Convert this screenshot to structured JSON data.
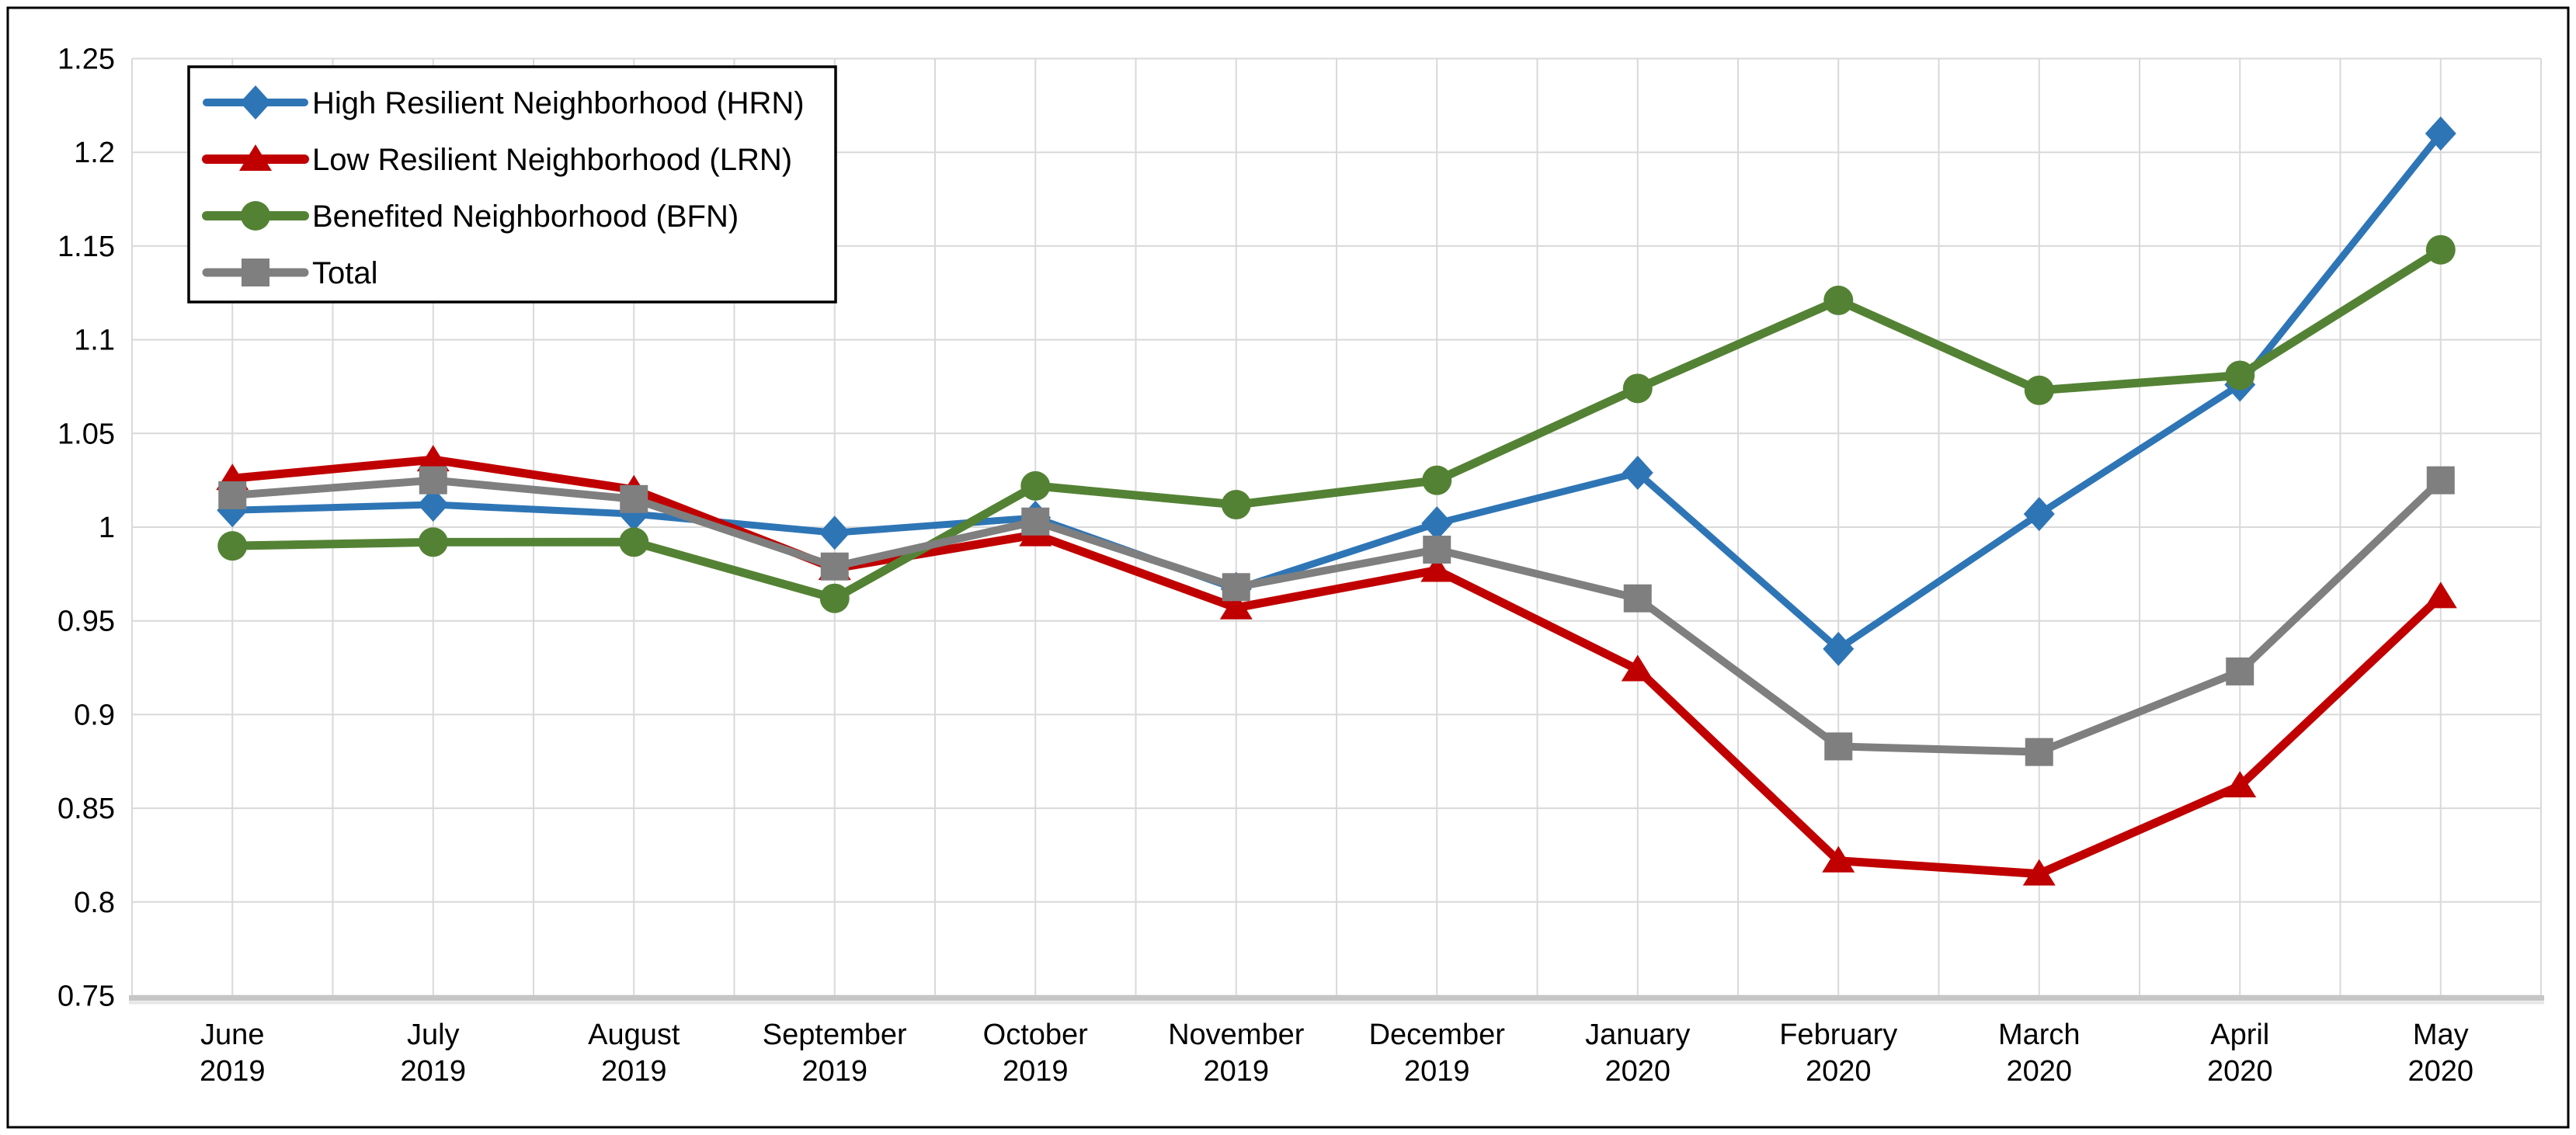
{
  "chart_data": {
    "type": "line",
    "title": "",
    "categories": [
      "June 2019",
      "July 2019",
      "August 2019",
      "September 2019",
      "October 2019",
      "November 2019",
      "December 2019",
      "January 2020",
      "February 2020",
      "March 2020",
      "April 2020",
      "May 2020"
    ],
    "categories_line1": [
      "June",
      "July",
      "August",
      "September",
      "October",
      "November",
      "December",
      "January",
      "February",
      "March",
      "April",
      "May"
    ],
    "categories_line2": [
      "2019",
      "2019",
      "2019",
      "2019",
      "2019",
      "2019",
      "2019",
      "2020",
      "2020",
      "2020",
      "2020",
      "2020"
    ],
    "series": [
      {
        "key": "hrn",
        "name": "High Resilient Neighborhood (HRN)",
        "color": "#2E75B6",
        "marker": "diamond",
        "line_width": 9,
        "values": [
          1.009,
          1.012,
          1.007,
          0.997,
          1.005,
          0.967,
          1.002,
          1.029,
          0.935,
          1.007,
          1.076,
          1.21
        ]
      },
      {
        "key": "lrn",
        "name": "Low Resilient Neighborhood (LRN)",
        "color": "#C00000",
        "marker": "triangle",
        "line_width": 11,
        "values": [
          1.026,
          1.036,
          1.02,
          0.978,
          0.996,
          0.957,
          0.977,
          0.924,
          0.822,
          0.815,
          0.862,
          0.963
        ]
      },
      {
        "key": "bfn",
        "name": "Benefited Neighborhood (BFN)",
        "color": "#548235",
        "marker": "circle",
        "line_width": 11,
        "values": [
          0.99,
          0.992,
          0.992,
          0.962,
          1.022,
          1.012,
          1.025,
          1.074,
          1.121,
          1.073,
          1.081,
          1.148
        ]
      },
      {
        "key": "total",
        "name": "Total",
        "color": "#7F7F7F",
        "marker": "square",
        "line_width": 10,
        "values": [
          1.017,
          1.025,
          1.015,
          0.979,
          1.003,
          0.968,
          0.988,
          0.962,
          0.883,
          0.88,
          0.923,
          1.025
        ]
      }
    ],
    "ylim": [
      0.75,
      1.25
    ],
    "ytick_step": 0.05,
    "ytick_labels": [
      "1.25",
      "1.2",
      "1.15",
      "1.1",
      "1.05",
      "1",
      "0.95",
      "0.9",
      "0.85",
      "0.8",
      "0.75"
    ],
    "legend_position": "top-left-inside",
    "grid": {
      "horizontal": true,
      "vertical": true,
      "color": "#D9D9D9",
      "axis_line_color": "#C6C6C6"
    },
    "frame_color": "#000000",
    "background": "#FFFFFF"
  }
}
